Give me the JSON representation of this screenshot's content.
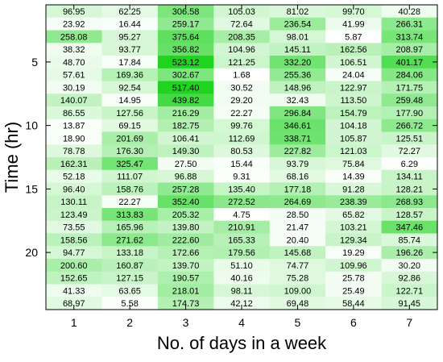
{
  "chart_data": {
    "type": "heatmap",
    "xlabel": "No. of days in a week",
    "ylabel": "Time (hr)",
    "x": [
      1,
      2,
      3,
      4,
      5,
      6,
      7
    ],
    "y": [
      1,
      2,
      3,
      4,
      5,
      6,
      7,
      8,
      9,
      10,
      11,
      12,
      13,
      14,
      15,
      16,
      17,
      18,
      19,
      20,
      21,
      22,
      23,
      24
    ],
    "xticks": [
      "1",
      "2",
      "3",
      "4",
      "5",
      "6",
      "7"
    ],
    "yticks": [
      "5",
      "10",
      "15",
      "20"
    ],
    "ytick_values": [
      5,
      10,
      15,
      20
    ],
    "color_low": "#ffffff",
    "color_high": "#1fd31f",
    "value_min": 0,
    "value_max": 523.12,
    "grid": false,
    "legend": "none",
    "values": [
      [
        "96.95",
        "62.25",
        "306.58",
        "105.03",
        "81.02",
        "99.70",
        "40.28"
      ],
      [
        "23.92",
        "16.44",
        "259.17",
        "72.64",
        "236.54",
        "41.99",
        "266.31"
      ],
      [
        "258.08",
        "95.27",
        "375.64",
        "208.35",
        "98.01",
        "5.87",
        "313.74"
      ],
      [
        "38.32",
        "93.77",
        "356.82",
        "104.96",
        "145.11",
        "162.56",
        "208.97"
      ],
      [
        "48.70",
        "17.84",
        "523.12",
        "121.25",
        "332.20",
        "106.51",
        "401.17"
      ],
      [
        "57.61",
        "169.36",
        "302.67",
        "1.68",
        "255.36",
        "24.04",
        "284.06"
      ],
      [
        "30.19",
        "92.54",
        "517.40",
        "30.52",
        "148.96",
        "122.97",
        "171.75"
      ],
      [
        "140.07",
        "14.95",
        "439.82",
        "29.20",
        "32.43",
        "113.50",
        "259.48"
      ],
      [
        "86.55",
        "127.56",
        "216.29",
        "22.27",
        "296.84",
        "154.79",
        "177.90"
      ],
      [
        "13.87",
        "69.15",
        "182.75",
        "99.76",
        "346.61",
        "104.18",
        "266.72"
      ],
      [
        "18.90",
        "201.69",
        "106.41",
        "112.69",
        "338.71",
        "105.87",
        "125.51"
      ],
      [
        "78.78",
        "176.30",
        "149.30",
        "80.53",
        "227.82",
        "121.03",
        "72.27"
      ],
      [
        "162.31",
        "325.47",
        "27.50",
        "15.44",
        "93.79",
        "75.84",
        "6.29"
      ],
      [
        "52.18",
        "111.07",
        "96.88",
        "9.31",
        "68.16",
        "14.39",
        "134.11"
      ],
      [
        "96.40",
        "158.76",
        "257.28",
        "135.40",
        "177.18",
        "91.28",
        "128.21"
      ],
      [
        "130.11",
        "22.27",
        "352.40",
        "272.52",
        "264.69",
        "238.39",
        "268.93"
      ],
      [
        "123.49",
        "313.83",
        "205.32",
        "4.75",
        "28.50",
        "65.82",
        "128.57"
      ],
      [
        "73.55",
        "165.96",
        "139.80",
        "210.91",
        "21.47",
        "103.21",
        "347.46"
      ],
      [
        "158.56",
        "271.62",
        "222.60",
        "165.33",
        "20.40",
        "129.34",
        "85.74"
      ],
      [
        "94.77",
        "133.18",
        "172.66",
        "179.56",
        "145.68",
        "19.29",
        "196.26"
      ],
      [
        "200.60",
        "160.87",
        "139.70",
        "51.10",
        "74.77",
        "109.96",
        "30.20"
      ],
      [
        "152.65",
        "127.15",
        "190.57",
        "40.16",
        "75.28",
        "25.78",
        "92.86"
      ],
      [
        "41.33",
        "63.65",
        "218.01",
        "98.11",
        "109.00",
        "25.49",
        "122.71"
      ],
      [
        "68.97",
        "5.58",
        "174.73",
        "42.12",
        "69.48",
        "58.44",
        "91.45"
      ]
    ]
  }
}
